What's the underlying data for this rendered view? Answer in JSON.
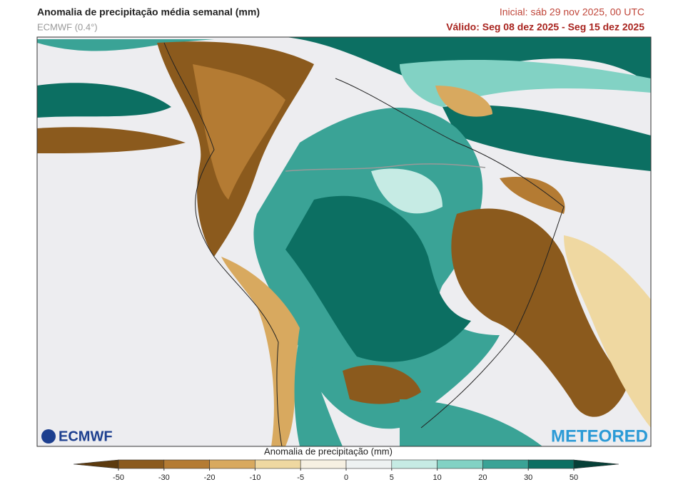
{
  "header": {
    "title": "Anomalia de precipitação média semanal (mm)",
    "model": "ECMWF (0.4°)",
    "initial": "Inicial:  sáb 29 nov 2025, 00 UTC",
    "valid": "Válido: Seg 08 dez 2025 - Seg 15 dez 2025"
  },
  "logos": {
    "left": "ECMWF",
    "right": "METEORED"
  },
  "colorbar": {
    "label": "Anomalia de precipitação (mm)",
    "ticks": [
      -50,
      -30,
      -20,
      -10,
      -5,
      0,
      5,
      10,
      20,
      30,
      50
    ],
    "colors": [
      "#5c3a0e",
      "#8b5a1d",
      "#b47b33",
      "#d8a95f",
      "#efd8a1",
      "#f6f0e2",
      "#eef2f2",
      "#c6ebe4",
      "#82d2c4",
      "#3aa396",
      "#0c6f62",
      "#063f37"
    ]
  }
}
